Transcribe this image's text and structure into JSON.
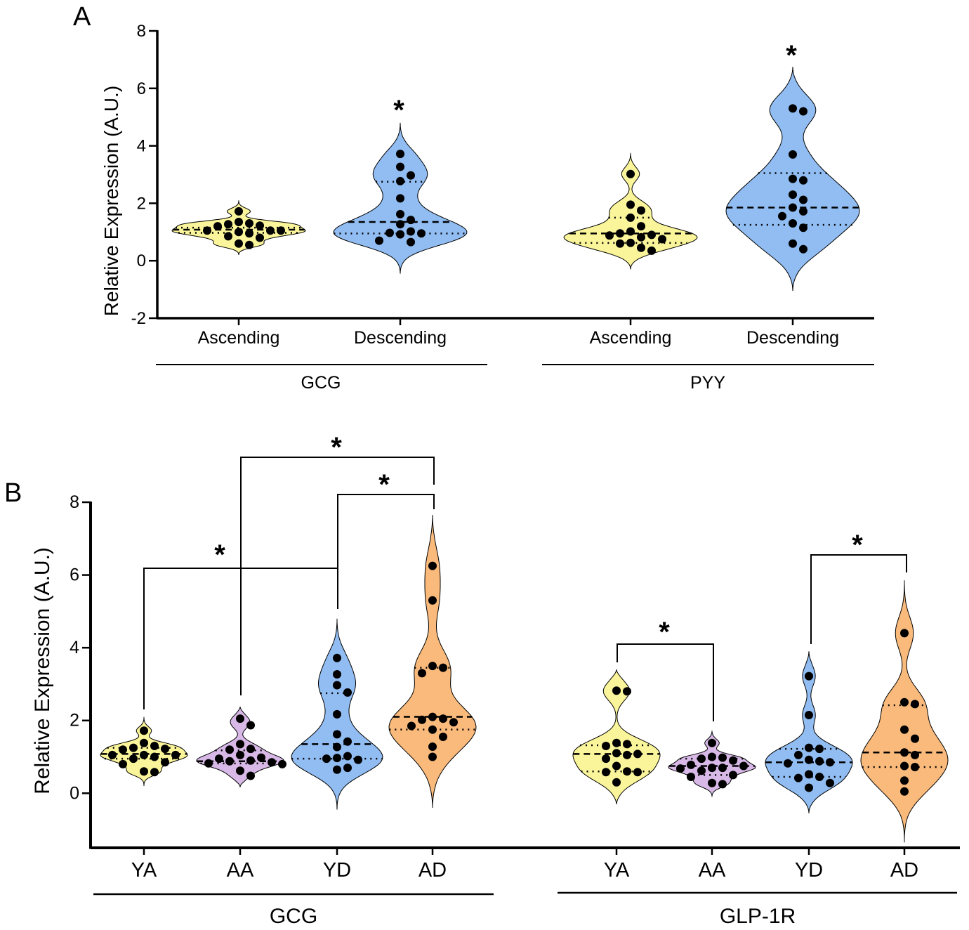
{
  "colors": {
    "ascending": "#faf59a",
    "descending": "#91bdf2",
    "aged_ascending": "#d7b8e6",
    "aged_descending": "#f9ba7c",
    "dots": "#000000",
    "axis": "#000000"
  },
  "chart_data": [
    {
      "panel": "A",
      "type": "violin",
      "title": "",
      "ylabel": "Relative Expression (A.U.)",
      "ylim": [
        -2,
        8
      ],
      "yticks": [
        -2,
        0,
        2,
        4,
        6,
        8
      ],
      "groups": [
        {
          "label": "GCG",
          "violins": [
            {
              "category": "Ascending",
              "color": "ascending",
              "median": 1.08,
              "q1": 0.97,
              "q3": 1.15,
              "range": [
                0.2,
                2.1
              ],
              "points": [
                1.72,
                1.35,
                1.3,
                1.27,
                1.22,
                1.2,
                1.05,
                1.05,
                1.05,
                1.0,
                0.95,
                0.85,
                0.8,
                0.6,
                0.55
              ]
            },
            {
              "category": "Descending",
              "color": "descending",
              "median": 1.35,
              "q1": 0.95,
              "q3": 2.75,
              "range": [
                -0.45,
                4.8
              ],
              "significance": "*",
              "points": [
                3.72,
                3.27,
                2.97,
                2.77,
                2.17,
                1.62,
                1.42,
                1.27,
                1.02,
                0.97,
                0.95,
                0.92,
                0.7,
                0.65
              ]
            }
          ]
        },
        {
          "label": "PYY",
          "violins": [
            {
              "category": "Ascending",
              "color": "ascending",
              "median": 0.95,
              "q1": 0.62,
              "q3": 1.5,
              "range": [
                -0.3,
                3.75
              ],
              "points": [
                3.02,
                1.95,
                1.75,
                1.5,
                1.2,
                1.02,
                0.95,
                0.9,
                0.88,
                0.82,
                0.75,
                0.62,
                0.6,
                0.45,
                0.35
              ]
            },
            {
              "category": "Descending",
              "color": "descending",
              "median": 1.85,
              "q1": 1.25,
              "q3": 3.05,
              "range": [
                -1.05,
                6.75
              ],
              "significance": "*",
              "points": [
                5.3,
                5.2,
                3.7,
                2.85,
                2.8,
                2.3,
                2.12,
                1.85,
                1.72,
                1.55,
                1.3,
                1.15,
                0.6,
                0.4
              ]
            }
          ]
        }
      ]
    },
    {
      "panel": "B",
      "type": "violin",
      "title": "",
      "ylabel": "Relative Expression (A.U.)",
      "ylim": [
        -1.5,
        8
      ],
      "yticks": [
        0,
        2,
        4,
        6,
        8
      ],
      "groups": [
        {
          "label": "GCG",
          "violins": [
            {
              "category": "YA",
              "color": "ascending",
              "median": 1.08,
              "q1": 0.95,
              "q3": 1.25,
              "range": [
                0.2,
                2.1
              ],
              "points": [
                1.72,
                1.38,
                1.3,
                1.25,
                1.22,
                1.2,
                1.05,
                1.05,
                1.05,
                1.0,
                0.95,
                0.85,
                0.8,
                0.6,
                0.58
              ]
            },
            {
              "category": "AA",
              "color": "aged_ascending",
              "median": 0.88,
              "q1": 0.82,
              "q3": 1.18,
              "range": [
                0.18,
                2.38
              ],
              "points": [
                2.05,
                1.87,
                1.35,
                1.22,
                1.2,
                1.05,
                0.98,
                0.95,
                0.9,
                0.88,
                0.85,
                0.82,
                0.8,
                0.62,
                0.48
              ]
            },
            {
              "category": "YD",
              "color": "descending",
              "median": 1.35,
              "q1": 0.95,
              "q3": 2.75,
              "range": [
                -0.45,
                4.8
              ],
              "points": [
                3.72,
                3.27,
                2.97,
                2.77,
                2.17,
                1.62,
                1.42,
                1.27,
                1.02,
                0.97,
                0.95,
                0.92,
                0.7,
                0.65
              ]
            },
            {
              "category": "AD",
              "color": "aged_descending",
              "median": 2.1,
              "q1": 1.75,
              "q3": 3.45,
              "range": [
                -0.4,
                7.65
              ],
              "points": [
                6.25,
                5.3,
                3.5,
                3.45,
                3.3,
                2.1,
                2.05,
                2.02,
                1.95,
                1.85,
                1.75,
                1.55,
                1.28,
                1.0
              ]
            }
          ]
        },
        {
          "label": "GLP-1R",
          "violins": [
            {
              "category": "YA",
              "color": "ascending",
              "median": 1.08,
              "q1": 0.6,
              "q3": 1.32,
              "range": [
                -0.3,
                3.4
              ],
              "points": [
                2.82,
                2.8,
                1.38,
                1.35,
                1.3,
                1.1,
                1.08,
                1.05,
                0.95,
                0.75,
                0.6,
                0.58,
                0.58,
                0.3
              ]
            },
            {
              "category": "AA",
              "color": "aged_ascending",
              "median": 0.75,
              "q1": 0.5,
              "q3": 0.95,
              "range": [
                -0.1,
                1.72
              ],
              "points": [
                1.38,
                1.0,
                0.98,
                0.95,
                0.9,
                0.78,
                0.75,
                0.7,
                0.7,
                0.68,
                0.62,
                0.5,
                0.45,
                0.28,
                0.25
              ]
            },
            {
              "category": "YD",
              "color": "descending",
              "median": 0.85,
              "q1": 0.45,
              "q3": 1.22,
              "range": [
                -0.55,
                3.9
              ],
              "significance": "",
              "points": [
                3.22,
                2.15,
                1.25,
                1.22,
                1.05,
                0.92,
                0.88,
                0.85,
                0.82,
                0.52,
                0.45,
                0.42,
                0.28,
                0.15
              ]
            },
            {
              "category": "AD",
              "color": "aged_descending",
              "median": 1.12,
              "q1": 0.72,
              "q3": 2.42,
              "range": [
                -1.35,
                5.85
              ],
              "points": [
                4.4,
                2.5,
                2.45,
                1.75,
                1.5,
                1.12,
                1.05,
                0.75,
                0.72,
                0.35,
                0.05
              ]
            }
          ]
        }
      ],
      "comparisons": [
        {
          "from": "GCG.YA",
          "to": "GCG.YD",
          "label": "*"
        },
        {
          "from": "GCG.AA",
          "to": "GCG.AD",
          "label": "*"
        },
        {
          "from": "GCG.YD",
          "to": "GCG.AD",
          "label": "*"
        },
        {
          "from": "GLP-1R.YA",
          "to": "GLP-1R.AA",
          "label": "*"
        },
        {
          "from": "GLP-1R.YD",
          "to": "GLP-1R.AD",
          "label": "*"
        }
      ]
    }
  ],
  "panel_labels": {
    "a": "A",
    "b": "B"
  },
  "axis_labels": {
    "a_y": "Relative Expression (A.U.)",
    "b_y": "Relative Expression (A.U.)"
  },
  "category_labels": {
    "a1": "Ascending",
    "a2": "Descending",
    "a3": "Ascending",
    "a4": "Descending",
    "b1": "YA",
    "b2": "AA",
    "b3": "YD",
    "b4": "AD",
    "b5": "YA",
    "b6": "AA",
    "b7": "YD",
    "b8": "AD"
  },
  "group_labels": {
    "a_left": "GCG",
    "a_right": "PYY",
    "b_left": "GCG",
    "b_right": "GLP-1R"
  },
  "significance_marks": {
    "a_gcg": "*",
    "a_pyy": "*",
    "b_1": "*",
    "b_2": "*",
    "b_3": "*",
    "b_4": "*",
    "b_5": "*"
  }
}
